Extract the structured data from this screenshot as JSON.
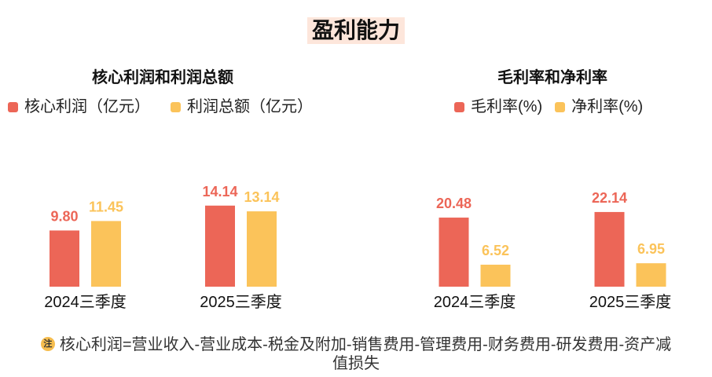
{
  "page": {
    "title": "盈利能力",
    "note_icon": "注",
    "note_text": "核心利润=营业收入-营业成本-税金及附加-销售费用-管理费用-财务费用-研发费用-资产减值损失"
  },
  "chart_data": [
    {
      "type": "bar",
      "title": "核心利润和利润总额",
      "categories": [
        "2024三季度",
        "2025三季度"
      ],
      "series": [
        {
          "name": "核心利润（亿元）",
          "values": [
            9.8,
            14.14
          ],
          "labels": [
            "9.80",
            "14.14"
          ],
          "color": "#ec6657"
        },
        {
          "name": "利润总额（亿元）",
          "values": [
            11.45,
            13.14
          ],
          "labels": [
            "11.45",
            "13.14"
          ],
          "color": "#fbc35a"
        }
      ],
      "ylim": [
        0,
        20
      ]
    },
    {
      "type": "bar",
      "title": "毛利率和净利率",
      "categories": [
        "2024三季度",
        "2025三季度"
      ],
      "series": [
        {
          "name": "毛利率(%)",
          "values": [
            20.48,
            22.14
          ],
          "labels": [
            "20.48",
            "22.14"
          ],
          "color": "#ec6657"
        },
        {
          "name": "净利率(%)",
          "values": [
            6.52,
            6.95
          ],
          "labels": [
            "6.52",
            "6.95"
          ],
          "color": "#fbc35a"
        }
      ],
      "ylim": [
        0,
        34
      ]
    }
  ]
}
